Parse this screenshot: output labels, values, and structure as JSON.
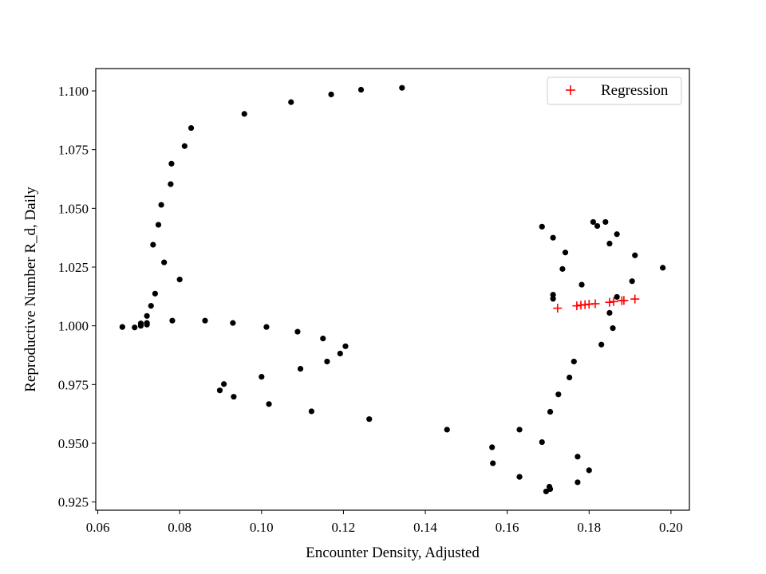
{
  "chart_data": {
    "type": "scatter",
    "title": "",
    "xlabel": "Encounter Density, Adjusted",
    "ylabel": "Reproductive Number R_d, Daily",
    "xlim": [
      0.0595,
      0.2045
    ],
    "ylim": [
      0.9215,
      1.1095
    ],
    "xticks": [
      0.06,
      0.08,
      0.1,
      0.12,
      0.14,
      0.16,
      0.18,
      0.2
    ],
    "xtick_labels": [
      "0.06",
      "0.08",
      "0.10",
      "0.12",
      "0.14",
      "0.16",
      "0.18",
      "0.20"
    ],
    "yticks": [
      0.925,
      0.95,
      0.975,
      1.0,
      1.025,
      1.05,
      1.075,
      1.1
    ],
    "ytick_labels": [
      "0.925",
      "0.950",
      "0.975",
      "1.000",
      "1.025",
      "1.050",
      "1.075",
      "1.100"
    ],
    "grid": false,
    "legend": {
      "position": "top-right",
      "entries": [
        "Regression"
      ]
    },
    "series": [
      {
        "marker": "dot",
        "color": "#000000",
        "points": [
          [
            0.066,
            0.9995
          ],
          [
            0.069,
            0.9993
          ],
          [
            0.0705,
            1.0
          ],
          [
            0.0705,
            1.001
          ],
          [
            0.072,
            1.0005
          ],
          [
            0.072,
            1.0012
          ],
          [
            0.072,
            1.0042
          ],
          [
            0.073,
            1.0085
          ],
          [
            0.074,
            1.0137
          ],
          [
            0.0735,
            1.0345
          ],
          [
            0.0748,
            1.043
          ],
          [
            0.0755,
            1.0515
          ],
          [
            0.0762,
            1.027
          ],
          [
            0.0778,
            1.0603
          ],
          [
            0.078,
            1.069
          ],
          [
            0.0782,
            1.0022
          ],
          [
            0.08,
            1.0197
          ],
          [
            0.0812,
            1.0765
          ],
          [
            0.0828,
            1.0842
          ],
          [
            0.0862,
            1.0022
          ],
          [
            0.0898,
            0.9725
          ],
          [
            0.0908,
            0.9752
          ],
          [
            0.093,
            1.0012
          ],
          [
            0.0932,
            0.9698
          ],
          [
            0.0958,
            1.0902
          ],
          [
            0.1,
            0.9783
          ],
          [
            0.1012,
            0.9995
          ],
          [
            0.1018,
            0.9667
          ],
          [
            0.1072,
            1.0952
          ],
          [
            0.1088,
            0.9975
          ],
          [
            0.1095,
            0.9817
          ],
          [
            0.1122,
            0.9636
          ],
          [
            0.115,
            0.9946
          ],
          [
            0.116,
            0.9848
          ],
          [
            0.117,
            1.0985
          ],
          [
            0.1192,
            0.9882
          ],
          [
            0.1205,
            0.9913
          ],
          [
            0.1243,
            1.1005
          ],
          [
            0.1263,
            0.9603
          ],
          [
            0.1343,
            1.1013
          ],
          [
            0.1453,
            0.9558
          ],
          [
            0.1563,
            0.9483
          ],
          [
            0.1565,
            0.9415
          ],
          [
            0.163,
            0.9558
          ],
          [
            0.163,
            0.9357
          ],
          [
            0.1685,
            0.9505
          ],
          [
            0.1685,
            1.0422
          ],
          [
            0.1695,
            0.9295
          ],
          [
            0.1703,
            0.9315
          ],
          [
            0.1705,
            0.9305
          ],
          [
            0.1705,
            0.9634
          ],
          [
            0.1712,
            1.0132
          ],
          [
            0.1712,
            1.0115
          ],
          [
            0.1712,
            1.0375
          ],
          [
            0.1725,
            0.9708
          ],
          [
            0.1735,
            1.0242
          ],
          [
            0.1742,
            1.0312
          ],
          [
            0.1752,
            0.978
          ],
          [
            0.1763,
            0.9848
          ],
          [
            0.1772,
            0.9334
          ],
          [
            0.1772,
            0.9443
          ],
          [
            0.1782,
            1.0175
          ],
          [
            0.18,
            0.9385
          ],
          [
            0.181,
            1.0442
          ],
          [
            0.182,
            1.0425
          ],
          [
            0.183,
            0.992
          ],
          [
            0.184,
            1.0442
          ],
          [
            0.185,
            1.035
          ],
          [
            0.185,
            1.0055
          ],
          [
            0.1858,
            0.999
          ],
          [
            0.1868,
            1.0123
          ],
          [
            0.1868,
            1.039
          ],
          [
            0.1905,
            1.019
          ],
          [
            0.1912,
            1.03
          ],
          [
            0.198,
            1.0247
          ]
        ]
      },
      {
        "name": "Regression",
        "marker": "plus",
        "color": "#ff0000",
        "points": [
          [
            0.1723,
            1.0075
          ],
          [
            0.177,
            1.0085
          ],
          [
            0.178,
            1.0088
          ],
          [
            0.179,
            1.009
          ],
          [
            0.18,
            1.0092
          ],
          [
            0.1815,
            1.0094
          ],
          [
            0.185,
            1.01
          ],
          [
            0.186,
            1.0103
          ],
          [
            0.188,
            1.0107
          ],
          [
            0.1885,
            1.0108
          ],
          [
            0.1912,
            1.0114
          ]
        ]
      }
    ]
  }
}
